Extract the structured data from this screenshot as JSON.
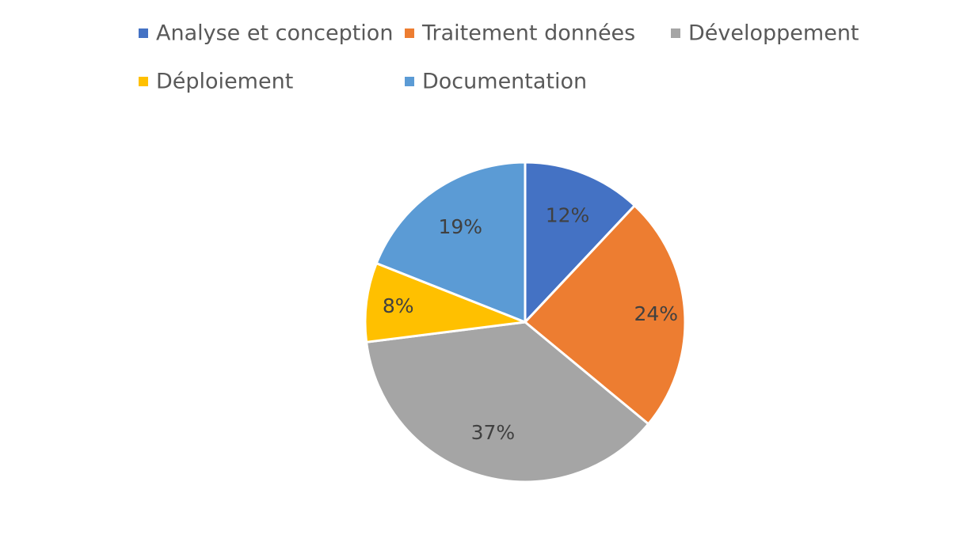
{
  "chart_data": {
    "type": "pie",
    "title": "",
    "legend_position": "top",
    "labels_shown": "percent",
    "categories": [
      "Analyse et conception",
      "Traitement données",
      "Développement",
      "Déploiement",
      "Documentation"
    ],
    "values": [
      12,
      24,
      37,
      8,
      19
    ],
    "value_labels": [
      "12%",
      "24%",
      "37%",
      "8%",
      "19%"
    ],
    "colors": [
      "#4472C4",
      "#ED7D31",
      "#A5A5A5",
      "#FFC000",
      "#5B9BD5"
    ],
    "start_angle": "12 o'clock",
    "direction": "clockwise"
  }
}
